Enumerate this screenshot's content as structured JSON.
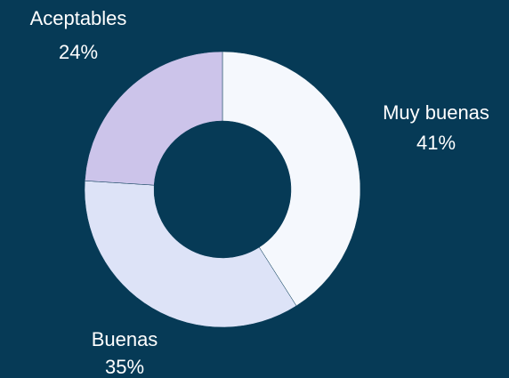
{
  "chart_data": {
    "type": "donut",
    "categories": [
      "Muy buenas",
      "Buenas",
      "Aceptables"
    ],
    "values": [
      41,
      35,
      24
    ],
    "value_labels": [
      "41%",
      "35%",
      "24%"
    ],
    "colors": [
      "#f5f8fd",
      "#dde3f7",
      "#ccc4ea"
    ]
  }
}
